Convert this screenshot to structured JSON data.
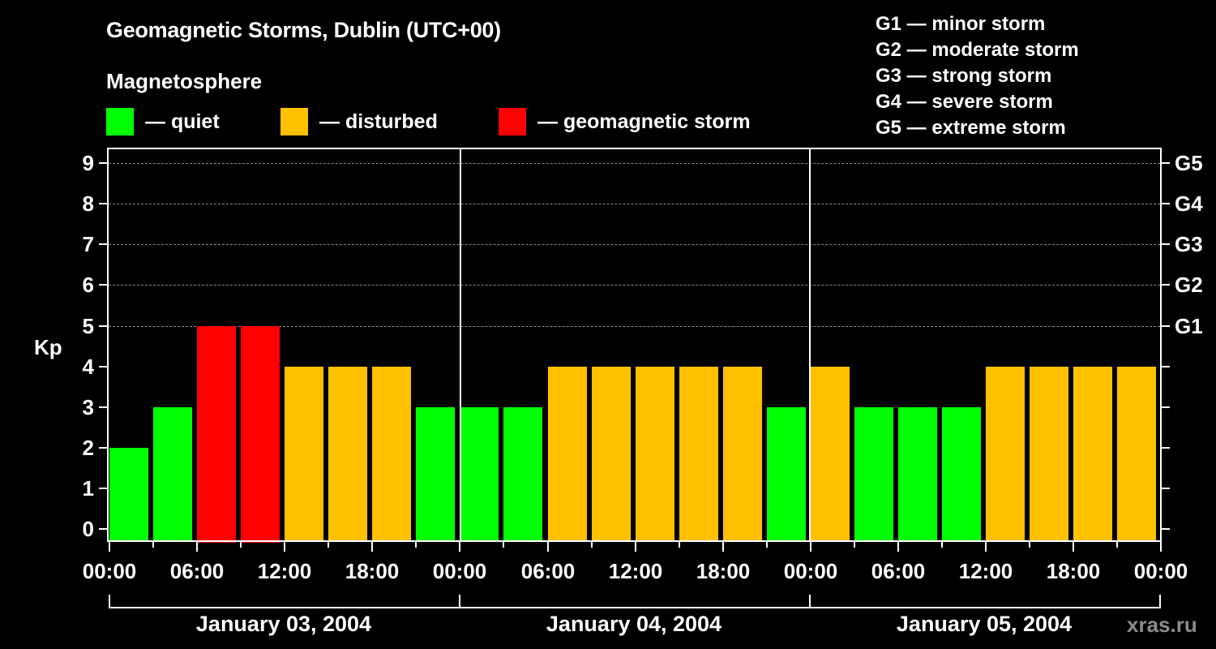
{
  "header": {
    "title": "Geomagnetic Storms, Dublin (UTC+00)",
    "subtitle": "Magnetosphere"
  },
  "legend": [
    {
      "label": "— quiet",
      "color": "#00ff00"
    },
    {
      "label": "— disturbed",
      "color": "#ffc000"
    },
    {
      "label": "— geomagnetic storm",
      "color": "#ff0000"
    }
  ],
  "storm_levels": [
    "G1 — minor storm",
    "G2 — moderate storm",
    "G3 — strong storm",
    "G4 — severe storm",
    "G5 — extreme storm"
  ],
  "axes": {
    "ylabel": "Kp",
    "yticks": [
      "0",
      "1",
      "2",
      "3",
      "4",
      "5",
      "6",
      "7",
      "8",
      "9"
    ],
    "right_ticks": [
      "G1",
      "G2",
      "G3",
      "G4",
      "G5"
    ],
    "xticks": [
      "00:00",
      "06:00",
      "12:00",
      "18:00",
      "00:00",
      "06:00",
      "12:00",
      "18:00",
      "00:00",
      "06:00",
      "12:00",
      "18:00",
      "00:00"
    ],
    "dates": [
      "January 03, 2004",
      "January 04, 2004",
      "January 05, 2004"
    ]
  },
  "watermark": "xras.ru",
  "colors": {
    "quiet": "#00ff00",
    "disturbed": "#ffc000",
    "storm": "#ff0000"
  },
  "chart_data": {
    "type": "bar",
    "title": "Geomagnetic Storms, Dublin (UTC+00)",
    "xlabel": "",
    "ylabel": "Kp",
    "ylim": [
      0,
      9
    ],
    "interval_hours": 3,
    "categories": [
      "2004-01-03 00:00",
      "2004-01-03 03:00",
      "2004-01-03 06:00",
      "2004-01-03 09:00",
      "2004-01-03 12:00",
      "2004-01-03 15:00",
      "2004-01-03 18:00",
      "2004-01-03 21:00",
      "2004-01-04 00:00",
      "2004-01-04 03:00",
      "2004-01-04 06:00",
      "2004-01-04 09:00",
      "2004-01-04 12:00",
      "2004-01-04 15:00",
      "2004-01-04 18:00",
      "2004-01-04 21:00",
      "2004-01-05 00:00",
      "2004-01-05 03:00",
      "2004-01-05 06:00",
      "2004-01-05 09:00",
      "2004-01-05 12:00",
      "2004-01-05 15:00",
      "2004-01-05 18:00",
      "2004-01-05 21:00"
    ],
    "values": [
      2,
      3,
      5,
      5,
      4,
      4,
      4,
      3,
      3,
      3,
      4,
      4,
      4,
      4,
      4,
      3,
      4,
      3,
      3,
      3,
      4,
      4,
      4,
      4
    ],
    "status": [
      "quiet",
      "quiet",
      "storm",
      "storm",
      "disturbed",
      "disturbed",
      "disturbed",
      "quiet",
      "quiet",
      "quiet",
      "disturbed",
      "disturbed",
      "disturbed",
      "disturbed",
      "disturbed",
      "quiet",
      "disturbed",
      "quiet",
      "quiet",
      "quiet",
      "disturbed",
      "disturbed",
      "disturbed",
      "disturbed"
    ],
    "legend": [
      "quiet",
      "disturbed",
      "geomagnetic storm"
    ],
    "secondary_axis": {
      "G1": 5,
      "G2": 6,
      "G3": 7,
      "G4": 8,
      "G5": 9
    },
    "grid": "dashed horizontal at Kp 5-9"
  }
}
